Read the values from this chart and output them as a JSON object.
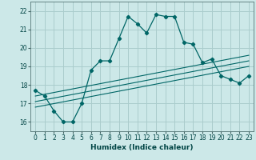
{
  "xlabel": "Humidex (Indice chaleur)",
  "bg_color": "#cce8e8",
  "grid_color": "#aacccc",
  "line_color": "#006666",
  "xlim": [
    -0.5,
    23.5
  ],
  "ylim": [
    15.5,
    22.5
  ],
  "yticks": [
    16,
    17,
    18,
    19,
    20,
    21,
    22
  ],
  "xticks": [
    0,
    1,
    2,
    3,
    4,
    5,
    6,
    7,
    8,
    9,
    10,
    11,
    12,
    13,
    14,
    15,
    16,
    17,
    18,
    19,
    20,
    21,
    22,
    23
  ],
  "series1_x": [
    0,
    1,
    2,
    3,
    4,
    5,
    6,
    7,
    8,
    9,
    10,
    11,
    12,
    13,
    14,
    15,
    16,
    17,
    18,
    19,
    20,
    21,
    22,
    23
  ],
  "series1_y": [
    17.7,
    17.4,
    16.6,
    16.0,
    16.0,
    17.0,
    18.8,
    19.3,
    19.3,
    20.5,
    21.7,
    21.3,
    20.8,
    21.8,
    21.7,
    21.7,
    20.3,
    20.2,
    19.2,
    19.4,
    18.5,
    18.3,
    18.1,
    18.5
  ],
  "line2_x": [
    0,
    23
  ],
  "line2_y": [
    16.8,
    19.0
  ],
  "line3_x": [
    0,
    23
  ],
  "line3_y": [
    17.1,
    19.3
  ],
  "line4_x": [
    0,
    23
  ],
  "line4_y": [
    17.4,
    19.6
  ]
}
